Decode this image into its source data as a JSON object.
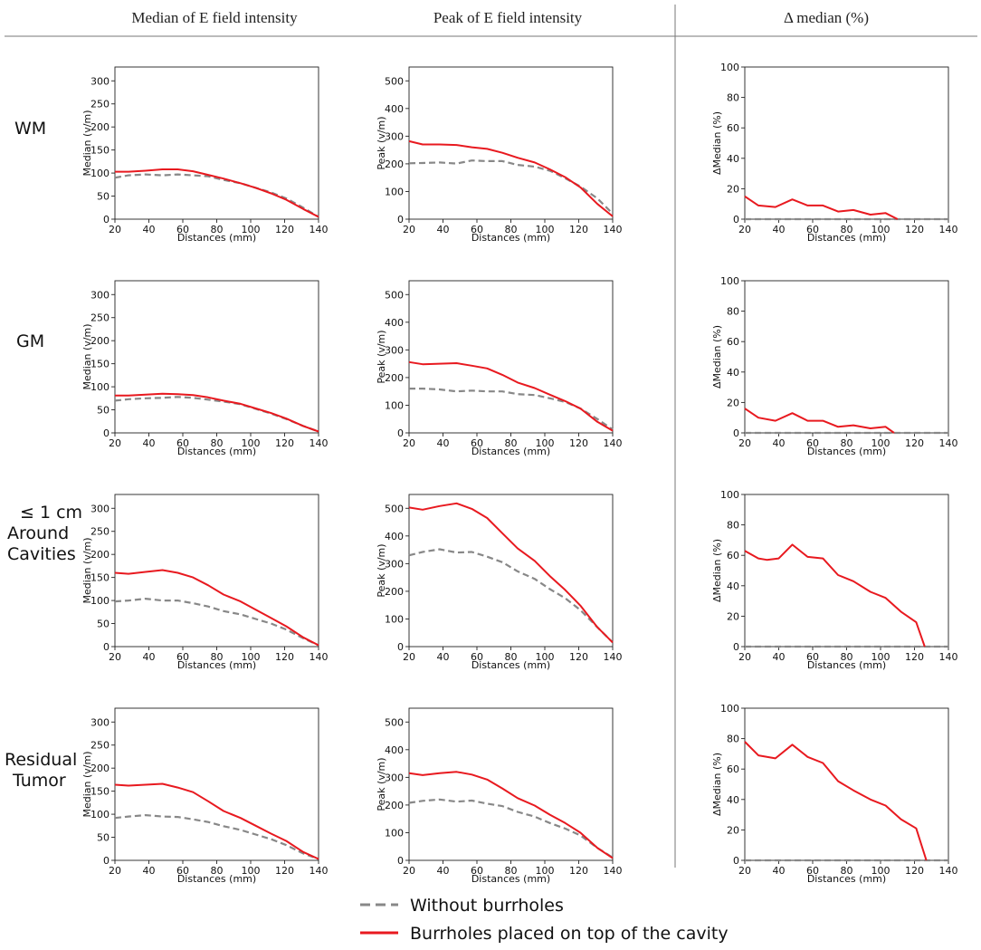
{
  "figure": {
    "column_headers": [
      "Median of E field intensity",
      "Peak of E field intensity",
      "Δ median (%)"
    ],
    "row_labels": [
      [
        "WM"
      ],
      [
        "GM"
      ],
      [
        "≤ 1 cm",
        "Around",
        "Cavities"
      ],
      [
        "Residual",
        "Tumor"
      ]
    ],
    "legend": [
      {
        "label": "Without burrholes",
        "color": "#888888",
        "dash": true
      },
      {
        "label": "Burrholes placed on top of the cavity",
        "color": "#e8191f",
        "dash": false
      }
    ]
  },
  "chart_data": [
    {
      "type": "line",
      "row": "WM",
      "column": "Median of E field intensity",
      "xlabel": "Distances (mm)",
      "ylabel": "Median (v/m)",
      "xlim": [
        20,
        140
      ],
      "ylim": [
        0,
        330
      ],
      "xticks": [
        20,
        40,
        60,
        80,
        100,
        120,
        140
      ],
      "yticks": [
        0,
        50,
        100,
        150,
        200,
        250,
        300
      ],
      "series": [
        {
          "name": "Without burrholes",
          "x": [
            20,
            28,
            38,
            48,
            57,
            66,
            75,
            84,
            94,
            103,
            112,
            121,
            131,
            140
          ],
          "values": [
            90,
            95,
            97,
            95,
            97,
            95,
            93,
            85,
            78,
            68,
            58,
            45,
            25,
            5
          ]
        },
        {
          "name": "Burrholes placed on top of the cavity",
          "x": [
            20,
            28,
            38,
            48,
            57,
            66,
            75,
            84,
            94,
            103,
            112,
            121,
            131,
            140
          ],
          "values": [
            103,
            103,
            105,
            108,
            108,
            104,
            96,
            88,
            78,
            68,
            56,
            42,
            22,
            5
          ]
        }
      ]
    },
    {
      "type": "line",
      "row": "WM",
      "column": "Peak of E field intensity",
      "xlabel": "Distances (mm)",
      "ylabel": "Peak (v/m)",
      "xlim": [
        20,
        140
      ],
      "ylim": [
        0,
        550
      ],
      "xticks": [
        20,
        40,
        60,
        80,
        100,
        120,
        140
      ],
      "yticks": [
        0,
        100,
        200,
        300,
        400,
        500
      ],
      "series": [
        {
          "name": "Without burrholes",
          "x": [
            20,
            28,
            38,
            48,
            57,
            66,
            75,
            84,
            94,
            103,
            112,
            121,
            131,
            140
          ],
          "values": [
            202,
            203,
            205,
            201,
            212,
            210,
            210,
            196,
            190,
            175,
            148,
            118,
            75,
            20
          ]
        },
        {
          "name": "Burrholes placed on top of the cavity",
          "x": [
            20,
            28,
            38,
            48,
            57,
            66,
            75,
            84,
            94,
            103,
            112,
            121,
            131,
            140
          ],
          "values": [
            282,
            270,
            270,
            268,
            260,
            254,
            240,
            222,
            205,
            180,
            152,
            115,
            55,
            10
          ]
        }
      ]
    },
    {
      "type": "line",
      "row": "WM",
      "column": "Δ median (%)",
      "xlabel": "Distances (mm)",
      "ylabel": "ΔMedian (%)",
      "xlim": [
        20,
        140
      ],
      "ylim": [
        0,
        100
      ],
      "xticks": [
        20,
        40,
        60,
        80,
        100,
        120,
        140
      ],
      "yticks": [
        0,
        20,
        40,
        60,
        80,
        100
      ],
      "series": [
        {
          "name": "Without burrholes",
          "x": [
            20,
            140
          ],
          "values": [
            0,
            0
          ]
        },
        {
          "name": "Burrholes placed on top of the cavity",
          "x": [
            20,
            28,
            38,
            48,
            57,
            66,
            75,
            84,
            94,
            103,
            110
          ],
          "values": [
            15,
            9,
            8,
            13,
            9,
            9,
            5,
            6,
            3,
            4,
            0
          ]
        }
      ]
    },
    {
      "type": "line",
      "row": "GM",
      "column": "Median of E field intensity",
      "xlabel": "Distances (mm)",
      "ylabel": "Median (v/m)",
      "xlim": [
        20,
        140
      ],
      "ylim": [
        0,
        330
      ],
      "xticks": [
        20,
        40,
        60,
        80,
        100,
        120,
        140
      ],
      "yticks": [
        0,
        50,
        100,
        150,
        200,
        250,
        300
      ],
      "series": [
        {
          "name": "Without burrholes",
          "x": [
            20,
            28,
            38,
            48,
            57,
            66,
            75,
            84,
            94,
            103,
            112,
            121,
            131,
            140
          ],
          "values": [
            70,
            73,
            75,
            76,
            78,
            76,
            72,
            68,
            62,
            52,
            42,
            30,
            15,
            3
          ]
        },
        {
          "name": "Burrholes placed on top of the cavity",
          "x": [
            20,
            28,
            38,
            48,
            57,
            66,
            75,
            84,
            94,
            103,
            112,
            121,
            131,
            140
          ],
          "values": [
            81,
            81,
            83,
            85,
            84,
            82,
            77,
            70,
            63,
            53,
            43,
            31,
            15,
            3
          ]
        }
      ]
    },
    {
      "type": "line",
      "row": "GM",
      "column": "Peak of E field intensity",
      "xlabel": "Distances (mm)",
      "ylabel": "Peak (v/m)",
      "xlim": [
        20,
        140
      ],
      "ylim": [
        0,
        550
      ],
      "xticks": [
        20,
        40,
        60,
        80,
        100,
        120,
        140
      ],
      "yticks": [
        0,
        100,
        200,
        300,
        400,
        500
      ],
      "series": [
        {
          "name": "Without burrholes",
          "x": [
            20,
            28,
            38,
            48,
            57,
            66,
            75,
            84,
            94,
            103,
            112,
            121,
            131,
            140
          ],
          "values": [
            160,
            160,
            157,
            150,
            153,
            150,
            150,
            140,
            137,
            125,
            112,
            88,
            50,
            12
          ]
        },
        {
          "name": "Burrholes placed on top of the cavity",
          "x": [
            20,
            28,
            38,
            48,
            57,
            66,
            75,
            84,
            94,
            103,
            112,
            121,
            131,
            140
          ],
          "values": [
            256,
            248,
            250,
            252,
            243,
            233,
            210,
            182,
            162,
            138,
            115,
            88,
            40,
            8
          ]
        }
      ]
    },
    {
      "type": "line",
      "row": "GM",
      "column": "Δ median (%)",
      "xlabel": "Distances (mm)",
      "ylabel": "ΔMedian (%)",
      "xlim": [
        20,
        140
      ],
      "ylim": [
        0,
        100
      ],
      "xticks": [
        20,
        40,
        60,
        80,
        100,
        120,
        140
      ],
      "yticks": [
        0,
        20,
        40,
        60,
        80,
        100
      ],
      "series": [
        {
          "name": "Without burrholes",
          "x": [
            20,
            140
          ],
          "values": [
            0,
            0
          ]
        },
        {
          "name": "Burrholes placed on top of the cavity",
          "x": [
            20,
            28,
            38,
            48,
            57,
            66,
            75,
            84,
            94,
            103,
            108
          ],
          "values": [
            16,
            10,
            8,
            13,
            8,
            8,
            4,
            5,
            3,
            4,
            0
          ]
        }
      ]
    },
    {
      "type": "line",
      "row": "≤ 1 cm Around Cavities",
      "column": "Median of E field intensity",
      "xlabel": "Distances (mm)",
      "ylabel": "Median (v/m)",
      "xlim": [
        20,
        140
      ],
      "ylim": [
        0,
        330
      ],
      "xticks": [
        20,
        40,
        60,
        80,
        100,
        120,
        140
      ],
      "yticks": [
        0,
        50,
        100,
        150,
        200,
        250,
        300
      ],
      "series": [
        {
          "name": "Without burrholes",
          "x": [
            20,
            28,
            38,
            48,
            57,
            66,
            75,
            84,
            94,
            103,
            112,
            121,
            131,
            140
          ],
          "values": [
            98,
            100,
            104,
            100,
            100,
            94,
            87,
            77,
            70,
            60,
            50,
            37,
            18,
            3
          ]
        },
        {
          "name": "Burrholes placed on top of the cavity",
          "x": [
            20,
            28,
            38,
            48,
            57,
            66,
            75,
            84,
            94,
            103,
            112,
            121,
            131,
            140
          ],
          "values": [
            160,
            158,
            162,
            166,
            160,
            150,
            133,
            113,
            98,
            80,
            62,
            44,
            20,
            3
          ]
        }
      ]
    },
    {
      "type": "line",
      "row": "≤ 1 cm Around Cavities",
      "column": "Peak of E field intensity",
      "xlabel": "Distances (mm)",
      "ylabel": "Peak (v/m)",
      "xlim": [
        20,
        140
      ],
      "ylim": [
        0,
        550
      ],
      "xticks": [
        20,
        40,
        60,
        80,
        100,
        120,
        140
      ],
      "yticks": [
        0,
        100,
        200,
        300,
        400,
        500
      ],
      "series": [
        {
          "name": "Without burrholes",
          "x": [
            20,
            28,
            38,
            48,
            57,
            66,
            75,
            84,
            94,
            103,
            112,
            121,
            131,
            140
          ],
          "values": [
            330,
            342,
            352,
            340,
            342,
            325,
            305,
            272,
            245,
            208,
            175,
            132,
            70,
            15
          ]
        },
        {
          "name": "Burrholes placed on top of the cavity",
          "x": [
            20,
            28,
            38,
            48,
            57,
            66,
            75,
            84,
            94,
            103,
            112,
            121,
            131,
            140
          ],
          "values": [
            503,
            495,
            508,
            518,
            498,
            465,
            410,
            355,
            310,
            255,
            205,
            148,
            70,
            15
          ]
        }
      ]
    },
    {
      "type": "line",
      "row": "≤ 1 cm Around Cavities",
      "column": "Δ median (%)",
      "xlabel": "Distances (mm)",
      "ylabel": "ΔMedian (%)",
      "xlim": [
        20,
        140
      ],
      "ylim": [
        0,
        100
      ],
      "xticks": [
        20,
        40,
        60,
        80,
        100,
        120,
        140
      ],
      "yticks": [
        0,
        20,
        40,
        60,
        80,
        100
      ],
      "series": [
        {
          "name": "Without burrholes",
          "x": [
            20,
            140
          ],
          "values": [
            0,
            0
          ]
        },
        {
          "name": "Burrholes placed on top of the cavity",
          "x": [
            20,
            28,
            33,
            40,
            48,
            57,
            66,
            75,
            84,
            94,
            103,
            112,
            121,
            126
          ],
          "values": [
            63,
            58,
            57,
            58,
            67,
            59,
            58,
            47,
            43,
            36,
            32,
            23,
            16,
            0
          ]
        }
      ]
    },
    {
      "type": "line",
      "row": "Residual Tumor",
      "column": "Median of E field intensity",
      "xlabel": "Distances (mm)",
      "ylabel": "Median (v/m)",
      "xlim": [
        20,
        140
      ],
      "ylim": [
        0,
        330
      ],
      "xticks": [
        20,
        40,
        60,
        80,
        100,
        120,
        140
      ],
      "yticks": [
        0,
        50,
        100,
        150,
        200,
        250,
        300
      ],
      "series": [
        {
          "name": "Without burrholes",
          "x": [
            20,
            28,
            38,
            48,
            57,
            66,
            75,
            84,
            94,
            103,
            112,
            121,
            131,
            140
          ],
          "values": [
            92,
            95,
            98,
            95,
            94,
            89,
            83,
            74,
            66,
            56,
            46,
            33,
            15,
            3
          ]
        },
        {
          "name": "Burrholes placed on top of the cavity",
          "x": [
            20,
            28,
            38,
            48,
            57,
            66,
            75,
            84,
            94,
            103,
            112,
            121,
            131,
            140
          ],
          "values": [
            164,
            162,
            164,
            166,
            158,
            148,
            128,
            107,
            92,
            75,
            58,
            42,
            18,
            3
          ]
        }
      ]
    },
    {
      "type": "line",
      "row": "Residual Tumor",
      "column": "Peak of E field intensity",
      "xlabel": "Distances (mm)",
      "ylabel": "Peak (v/m)",
      "xlim": [
        20,
        140
      ],
      "ylim": [
        0,
        550
      ],
      "xticks": [
        20,
        40,
        60,
        80,
        100,
        120,
        140
      ],
      "yticks": [
        0,
        100,
        200,
        300,
        400,
        500
      ],
      "series": [
        {
          "name": "Without burrholes",
          "x": [
            20,
            28,
            38,
            48,
            57,
            66,
            75,
            84,
            94,
            103,
            112,
            121,
            131,
            140
          ],
          "values": [
            208,
            215,
            220,
            212,
            216,
            205,
            196,
            175,
            158,
            135,
            115,
            90,
            45,
            10
          ]
        },
        {
          "name": "Burrholes placed on top of the cavity",
          "x": [
            20,
            28,
            38,
            48,
            57,
            66,
            75,
            84,
            94,
            103,
            112,
            121,
            131,
            140
          ],
          "values": [
            315,
            308,
            315,
            320,
            310,
            292,
            260,
            225,
            198,
            165,
            135,
            100,
            45,
            8
          ]
        }
      ]
    },
    {
      "type": "line",
      "row": "Residual Tumor",
      "column": "Δ median (%)",
      "xlabel": "Distances (mm)",
      "ylabel": "ΔMedian (%)",
      "xlim": [
        20,
        140
      ],
      "ylim": [
        0,
        100
      ],
      "xticks": [
        20,
        40,
        60,
        80,
        100,
        120,
        140
      ],
      "yticks": [
        0,
        20,
        40,
        60,
        80,
        100
      ],
      "series": [
        {
          "name": "Without burrholes",
          "x": [
            20,
            140
          ],
          "values": [
            0,
            0
          ]
        },
        {
          "name": "Burrholes placed on top of the cavity",
          "x": [
            20,
            28,
            38,
            48,
            57,
            66,
            75,
            84,
            94,
            103,
            112,
            121,
            127
          ],
          "values": [
            78,
            69,
            67,
            76,
            68,
            64,
            52,
            46,
            40,
            36,
            27,
            21,
            0
          ]
        }
      ]
    }
  ]
}
